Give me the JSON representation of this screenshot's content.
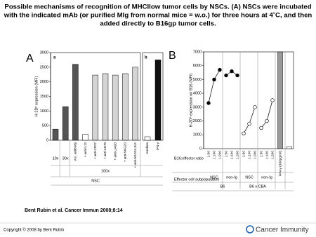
{
  "slide": {
    "title": [
      "Possible mechanisms of recognition of MHCIlow tumor cells by NSCs. (A) NSCs were incubated",
      "with the indicated mAb (or purified MIg from normal mice = w.o.) for three hours at 4˚C, and then",
      "added directly to B16gp tumor cells."
    ],
    "citation": "Bent Rubin et al. Cancer Immun 2008;8:14",
    "copyright": "Copyright © 2008 by Bent Rubin",
    "logo": "Cancer Immunity"
  },
  "chart_data": [
    {
      "type": "bar",
      "panel": "A",
      "subpanels": [
        "a",
        "b"
      ],
      "y_label": "H-2Dᵇ expression (MFI)",
      "categories": [
        "10x",
        "30x",
        "w.o. antibody",
        "+ anti-IL12",
        "+ anti-CD27",
        "+ anti-CD70",
        "+ anti-Ly49D",
        "+ anti-NKG2D",
        "+ anti-NKG2A,B,E",
        "medium",
        "IFN-γ"
      ],
      "values": [
        380,
        1150,
        2600,
        200,
        2230,
        2280,
        2230,
        2280,
        2500,
        120,
        2750
      ],
      "colors": [
        "#555555",
        "#555555",
        "#555555",
        "#ffffff",
        "#d4d4d4",
        "#d4d4d4",
        "#d4d4d4",
        "#d4d4d4",
        "#d4d4d4",
        "#ffffff",
        "#111111"
      ],
      "groups": [
        "100x",
        "NSC"
      ],
      "ylim": [
        0,
        3000
      ],
      "yticks": [
        0,
        500,
        1000,
        1500,
        2000,
        2500,
        3000
      ]
    },
    {
      "type": "line",
      "panel": "B",
      "y_label": "H-2Dᵇ expression on B16  (MFI)",
      "ratios": [
        "1:50",
        "1:100",
        "1:200"
      ],
      "row_labels": [
        "B16:effector ratio",
        "Effector cell subpopulation"
      ],
      "strains": [
        "B6",
        "B6 x CBA"
      ],
      "series": [
        {
          "name": "NSC",
          "color": "#000000",
          "marker_fill": "#000000",
          "values": [
            3300,
            5000,
            5700
          ]
        },
        {
          "name": "non-Ig",
          "color": "#000000",
          "marker_fill": "#000000",
          "values": [
            5300,
            5600,
            5300
          ]
        },
        {
          "name": "NSC",
          "color": "#000000",
          "marker_fill": "#ffffff",
          "values": [
            1100,
            1800,
            3000
          ]
        },
        {
          "name": "non-Ig",
          "color": "#000000",
          "marker_fill": "#ffffff",
          "values": [
            1500,
            2000,
            3500
          ]
        }
      ],
      "bars": {
        "categories": [
          "IFN-γ (300pg/ml)",
          null
        ],
        "values": [
          7000,
          150
        ],
        "colors": [
          "#999999",
          "#ffffff"
        ]
      },
      "ylim": [
        0,
        7000
      ],
      "yticks": [
        0,
        1000,
        2000,
        3000,
        4000,
        5000,
        6000,
        7000
      ]
    }
  ]
}
